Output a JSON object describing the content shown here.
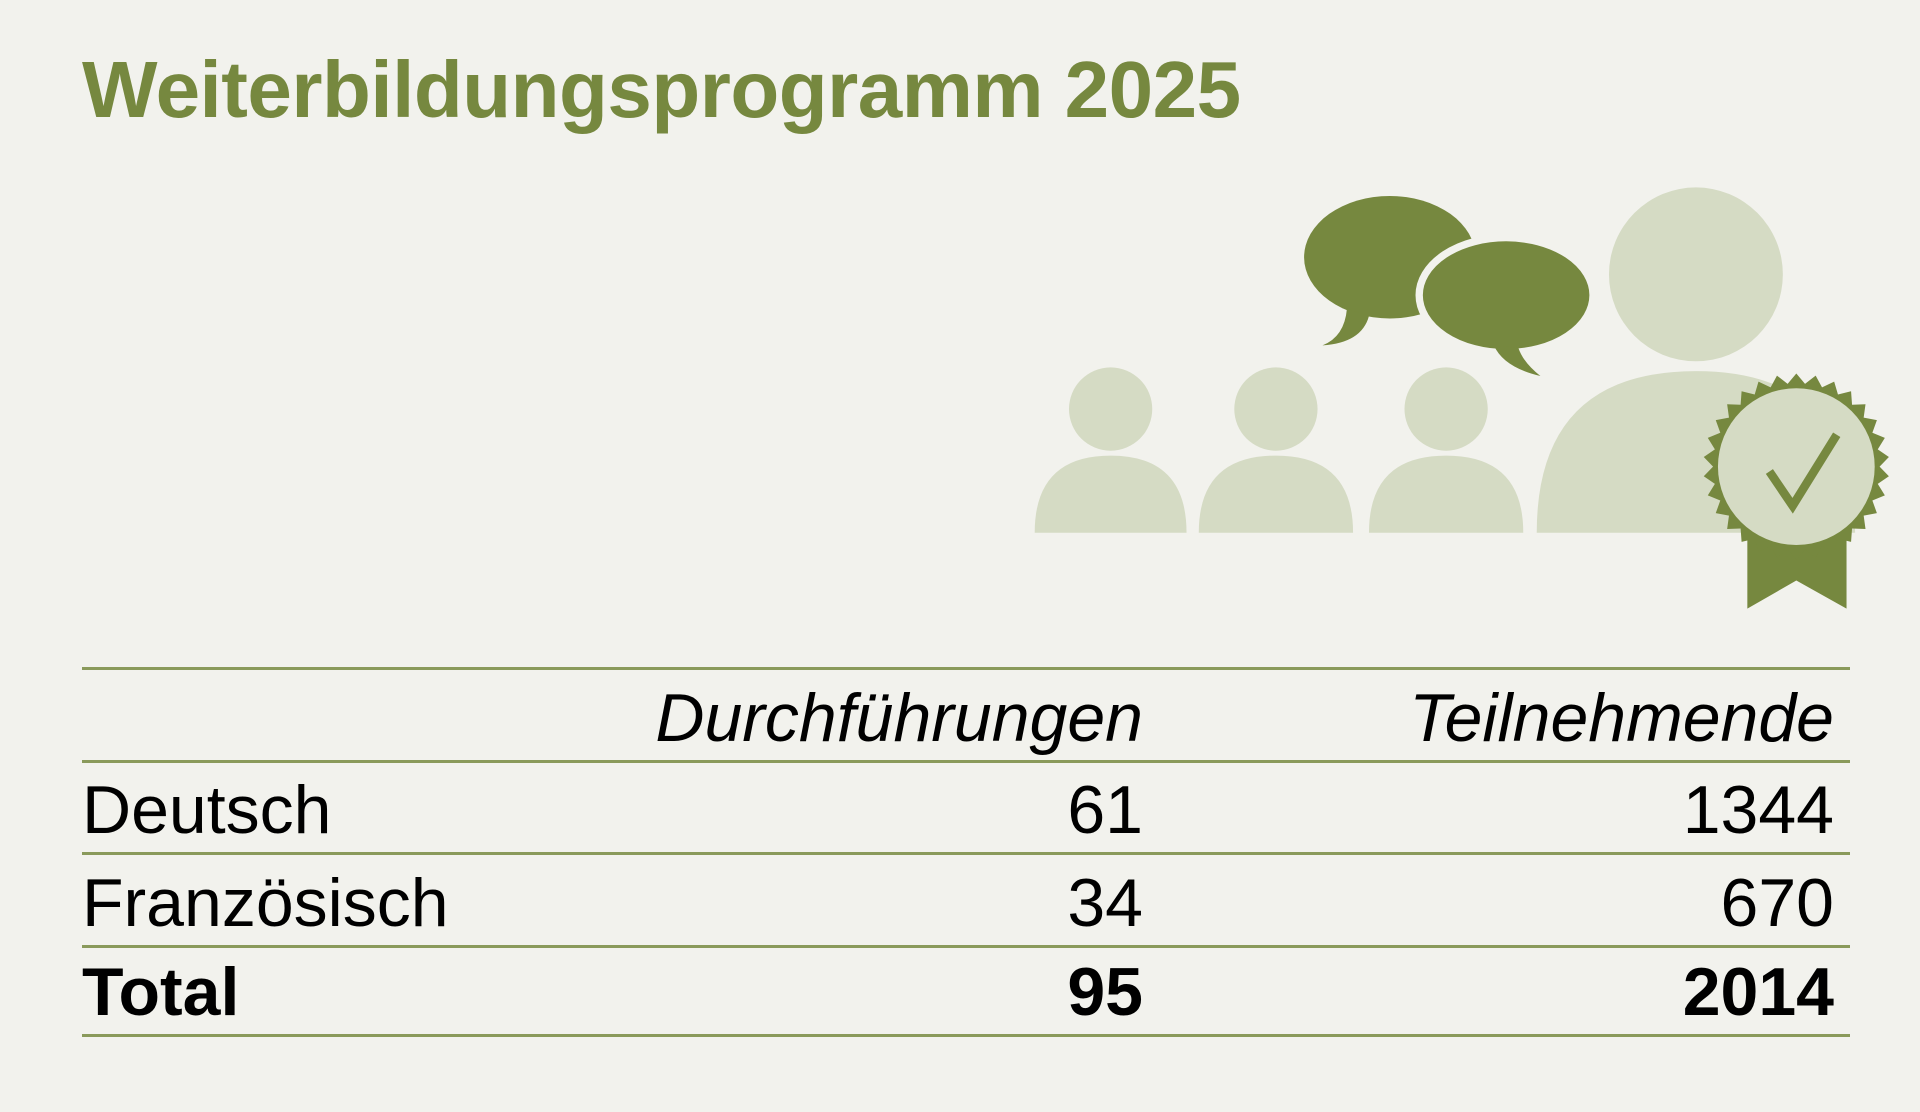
{
  "title": "Weiterbildungsprogramm 2025",
  "colors": {
    "accent": "#76883f",
    "light": "#d5dbc4",
    "rule": "#8a9a5b",
    "background": "#f2f2ed"
  },
  "illustration": {
    "icons": [
      "person-icon",
      "speech-bubble-icon",
      "certificate-badge-icon",
      "checkmark-icon"
    ]
  },
  "table": {
    "headers": [
      "",
      "Durchführungen",
      "Teilnehmende"
    ],
    "rows": [
      {
        "label": "Deutsch",
        "durchfuehrungen": "61",
        "teilnehmende": "1344"
      },
      {
        "label": "Französisch",
        "durchfuehrungen": "34",
        "teilnehmende": "670"
      }
    ],
    "total": {
      "label": "Total",
      "durchfuehrungen": "95",
      "teilnehmende": "2014"
    }
  }
}
